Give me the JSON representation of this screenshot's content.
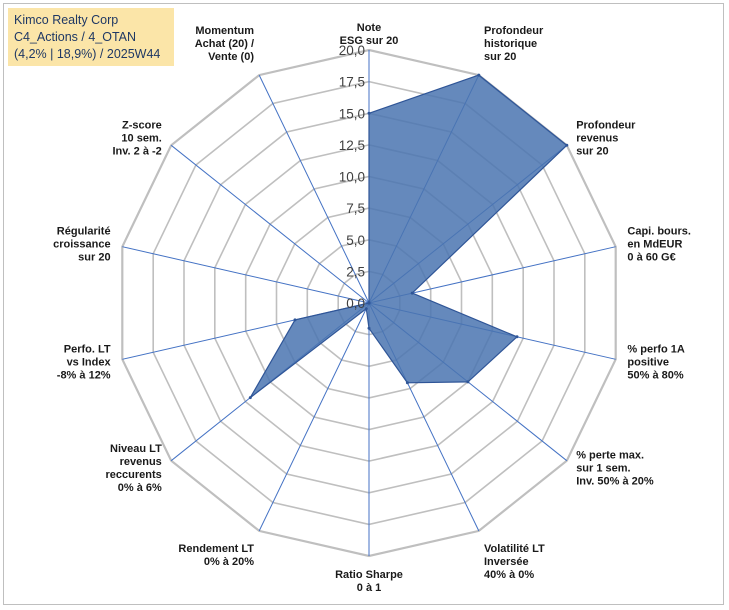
{
  "chart_data": {
    "type": "radar",
    "title_box": {
      "line1": "Kimco Realty Corp",
      "line2": "C4_Actions / 4_OTAN",
      "line3": "(4,2% | 18,9%) / 2025W44"
    },
    "rlim": [
      0,
      20
    ],
    "ticks": [
      "0,0",
      "2,5",
      "5,0",
      "7,5",
      "10,0",
      "12,5",
      "15,0",
      "17,5",
      "20,0"
    ],
    "axes": [
      [
        "Note",
        "ESG sur 20"
      ],
      [
        "Profondeur",
        "historique",
        "sur 20"
      ],
      [
        "Profondeur",
        "revenus",
        "sur 20"
      ],
      [
        "Capi. bours.",
        "en MdEUR",
        "0 à 60 G€"
      ],
      [
        "% perfo 1A",
        "positive",
        "50% à 80%"
      ],
      [
        "% perte max.",
        "sur 1 sem.",
        "Inv. 50% à 20%"
      ],
      [
        "Volatilité LT",
        "Inversée",
        "40% à 0%"
      ],
      [
        "Ratio Sharpe",
        "0 à 1"
      ],
      [
        "Rendement LT",
        "0% à 20%"
      ],
      [
        "Niveau LT",
        "revenus",
        "reccurents",
        "0% à 6%"
      ],
      [
        "Perfo. LT",
        "vs Index",
        "-8% à 12%"
      ],
      [
        "Régularité",
        "croissance",
        "sur 20"
      ],
      [
        "Z-score",
        "10 sem.",
        "Inv. 2 à -2"
      ],
      [
        "Momentum",
        "Achat (20) /",
        "Vente (0)"
      ]
    ],
    "values": [
      15.0,
      20.0,
      20.0,
      3.5,
      12.0,
      10.0,
      7.0,
      2.0,
      0.5,
      12.0,
      6.0,
      0.0,
      0.0,
      0.0
    ],
    "grid": true,
    "colors": {
      "fill": "#4a74b0",
      "line": "#2f5597",
      "grid": "#bfbfbf",
      "spoke": "#4472c4"
    }
  }
}
